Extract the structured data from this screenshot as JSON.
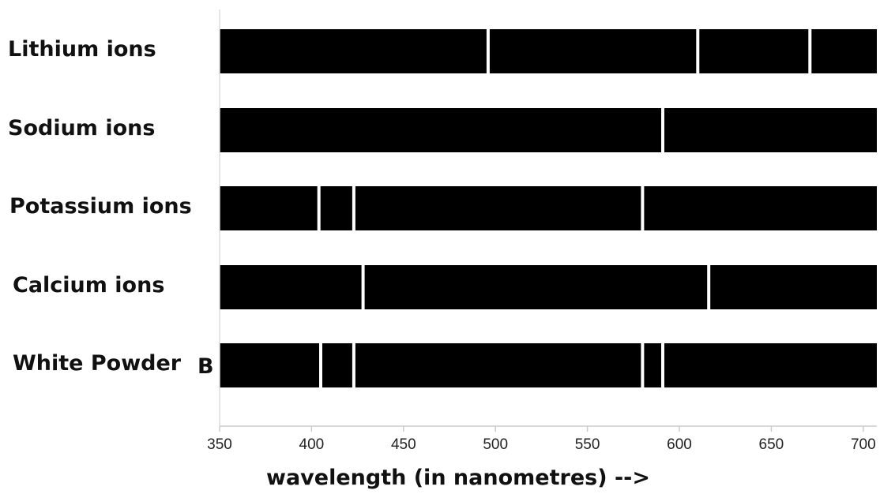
{
  "chart_data": {
    "type": "bar",
    "xlabel": "wavelength (in nanometres)  -->",
    "xlim": [
      350,
      710
    ],
    "x_ticks": [
      350,
      400,
      450,
      500,
      550,
      600,
      650,
      700
    ],
    "grid": false,
    "rows": [
      {
        "label": "Lithium ions",
        "lines": [
          496,
          610,
          671
        ]
      },
      {
        "label": "Sodium ions",
        "lines": [
          591
        ]
      },
      {
        "label": "Potassium ions",
        "lines": [
          404,
          423,
          580
        ]
      },
      {
        "label": "Calcium ions",
        "lines": [
          428,
          616
        ]
      },
      {
        "label": "White Powder",
        "label_suffix": "B",
        "lines": [
          405,
          423,
          580,
          591
        ]
      }
    ]
  },
  "colors": {
    "band": "#000000",
    "emission_line": "#ffffff",
    "axis": "#cccccc",
    "text": "#111111"
  }
}
